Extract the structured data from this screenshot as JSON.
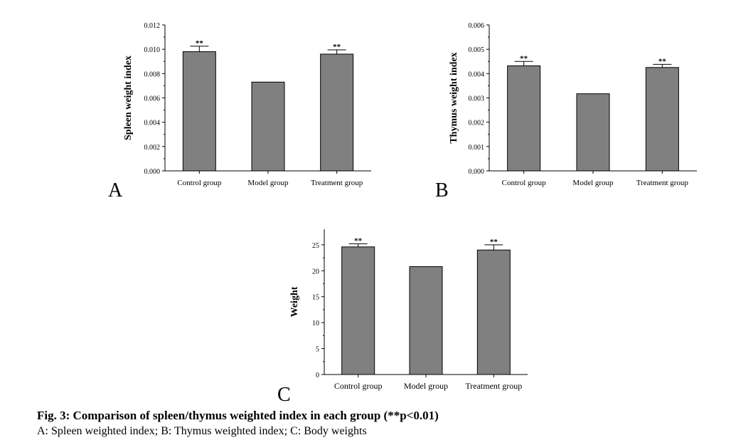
{
  "colors": {
    "bar_fill": "#808080",
    "bar_stroke": "#000000",
    "axis": "#000000"
  },
  "chart_data": [
    {
      "id": "A",
      "type": "bar",
      "panel_label": "A",
      "categories": [
        "Control group",
        "Model group",
        "Treatment group"
      ],
      "values": [
        0.0098,
        0.0073,
        0.0096
      ],
      "errors": [
        0.00045,
        0,
        0.00035
      ],
      "significance": [
        "**",
        "",
        "**"
      ],
      "ylabel": "Spleen weight index",
      "xlabel": "",
      "ylim": [
        0,
        0.012
      ],
      "yticks": [
        "0.000",
        "0.002",
        "0.004",
        "0.006",
        "0.008",
        "0.010",
        "0.012"
      ],
      "yticks_values": [
        0,
        0.002,
        0.004,
        0.006,
        0.008,
        0.01,
        0.012
      ],
      "grid": false
    },
    {
      "id": "B",
      "type": "bar",
      "panel_label": "B",
      "categories": [
        "Control group",
        "Model group",
        "Treatment group"
      ],
      "values": [
        0.00432,
        0.00317,
        0.00425
      ],
      "errors": [
        0.00018,
        0,
        0.00013
      ],
      "significance": [
        "**",
        "",
        "**"
      ],
      "ylabel": "Thymus weight index",
      "xlabel": "",
      "ylim": [
        0,
        0.006
      ],
      "yticks": [
        "0.000",
        "0.001",
        "0.002",
        "0.003",
        "0.004",
        "0.005",
        "0.006"
      ],
      "yticks_values": [
        0,
        0.001,
        0.002,
        0.003,
        0.004,
        0.005,
        0.006
      ],
      "grid": false
    },
    {
      "id": "C",
      "type": "bar",
      "panel_label": "C",
      "categories": [
        "Control group",
        "Model group",
        "Treatment group"
      ],
      "values": [
        24.6,
        20.8,
        24.0
      ],
      "errors": [
        0.6,
        0,
        1.0
      ],
      "significance": [
        "**",
        "",
        "**"
      ],
      "ylabel": "Weight",
      "xlabel": "",
      "ylim": [
        0,
        28
      ],
      "yticks": [
        "0",
        "5",
        "10",
        "15",
        "20",
        "25"
      ],
      "yticks_values": [
        0,
        5,
        10,
        15,
        20,
        25
      ],
      "grid": false
    }
  ],
  "caption": {
    "title": "Fig. 3: Comparison of spleen/thymus weighted index in each group (**p<0.01)",
    "subtitle": "A: Spleen weighted index; B: Thymus weighted index; C: Body weights"
  }
}
